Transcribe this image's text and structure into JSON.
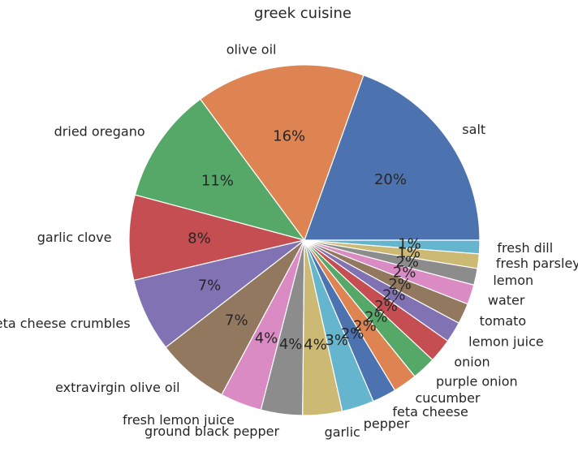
{
  "chart_data": {
    "type": "pie",
    "title": "greek cuisine",
    "start_angle_deg": 0,
    "direction": "counterclockwise",
    "categories": [
      "salt",
      "olive oil",
      "dried oregano",
      "garlic clove",
      "feta cheese crumbles",
      "extravirgin olive oil",
      "fresh lemon juice",
      "ground black pepper",
      "garlic",
      "pepper",
      "feta cheese",
      "cucumber",
      "purple onion",
      "onion",
      "lemon juice",
      "tomato",
      "water",
      "lemon",
      "fresh parsley",
      "fresh dill"
    ],
    "values": [
      20.4,
      16.3,
      11.2,
      8.2,
      7.1,
      7.0,
      4.0,
      4.0,
      3.8,
      3.1,
      2.3,
      2.3,
      2.3,
      2.3,
      2.0,
      2.0,
      1.9,
      1.6,
      1.4,
      1.3
    ],
    "labels_pct": [
      "20%",
      "16%",
      "11%",
      "8%",
      "7%",
      "7%",
      "4%",
      "4%",
      "4%",
      "3%",
      "2%",
      "2%",
      "2%",
      "2%",
      "2%",
      "2%",
      "2%",
      "2%",
      "1%",
      "1%"
    ],
    "colors": [
      "#4c72b0",
      "#dd8452",
      "#55a868",
      "#c44e52",
      "#8172b3",
      "#937860",
      "#da8bc3",
      "#8c8c8c",
      "#ccb974",
      "#64b5cd",
      "#4c72b0",
      "#dd8452",
      "#55a868",
      "#c44e52",
      "#8172b3",
      "#937860",
      "#da8bc3",
      "#8c8c8c",
      "#ccb974",
      "#64b5cd"
    ],
    "legend": "none"
  }
}
